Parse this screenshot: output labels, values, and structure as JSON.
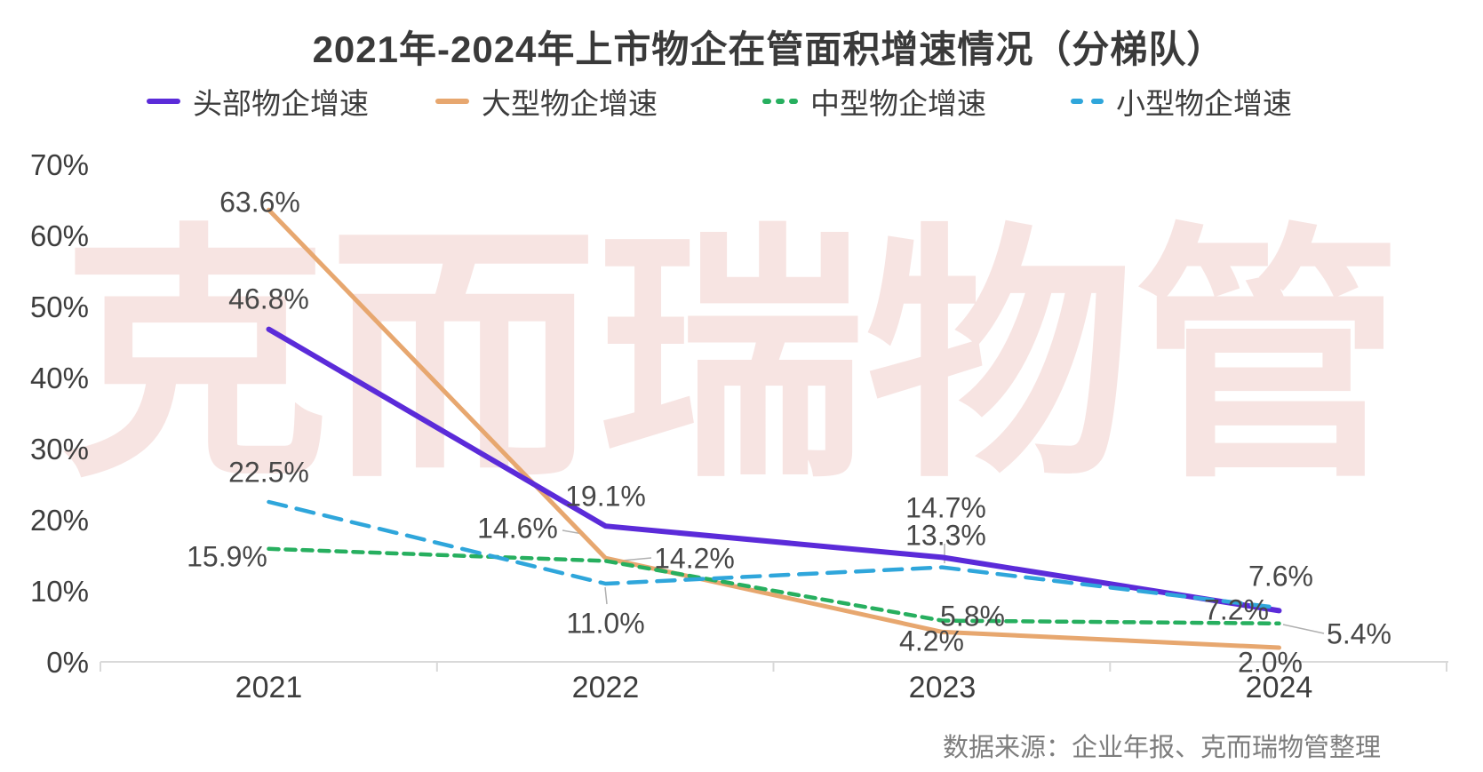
{
  "title": "2021年-2024年上市物企在管面积增速情况（分梯队）",
  "watermark": "克而瑞物管",
  "source_note": "数据来源：企业年报、克而瑞物管整理",
  "chart_data": {
    "type": "line",
    "title": "2021年-2024年上市物企在管面积增速情况（分梯队）",
    "categories": [
      "2021",
      "2022",
      "2023",
      "2024"
    ],
    "y_tick_labels": [
      "70%",
      "60%",
      "50%",
      "40%",
      "30%",
      "20%",
      "10%",
      "0%"
    ],
    "ylim": [
      0,
      70
    ],
    "grid": false,
    "legend_position": "top",
    "series": [
      {
        "name": "头部物企增速",
        "color": "#5B2BD9",
        "line_style": "solid",
        "values": [
          46.8,
          19.1,
          14.7,
          7.2
        ],
        "labels": [
          "46.8%",
          "19.1%",
          "14.7%",
          "7.2%"
        ]
      },
      {
        "name": "大型物企增速",
        "color": "#E7A76F",
        "line_style": "solid",
        "values": [
          63.6,
          14.6,
          4.2,
          2.0
        ],
        "labels": [
          "63.6%",
          "14.6%",
          "4.2%",
          "2.0%"
        ]
      },
      {
        "name": "中型物企增速",
        "color": "#27AF5F",
        "line_style": "dashed",
        "values": [
          15.9,
          14.2,
          5.8,
          5.4
        ],
        "labels": [
          "15.9%",
          "14.2%",
          "5.8%",
          "5.4%"
        ]
      },
      {
        "name": "小型物企增速",
        "color": "#2FA6DB",
        "line_style": "dashed",
        "values": [
          22.5,
          11.0,
          13.3,
          7.6
        ],
        "labels": [
          "22.5%",
          "11.0%",
          "13.3%",
          "7.6%"
        ]
      }
    ]
  }
}
